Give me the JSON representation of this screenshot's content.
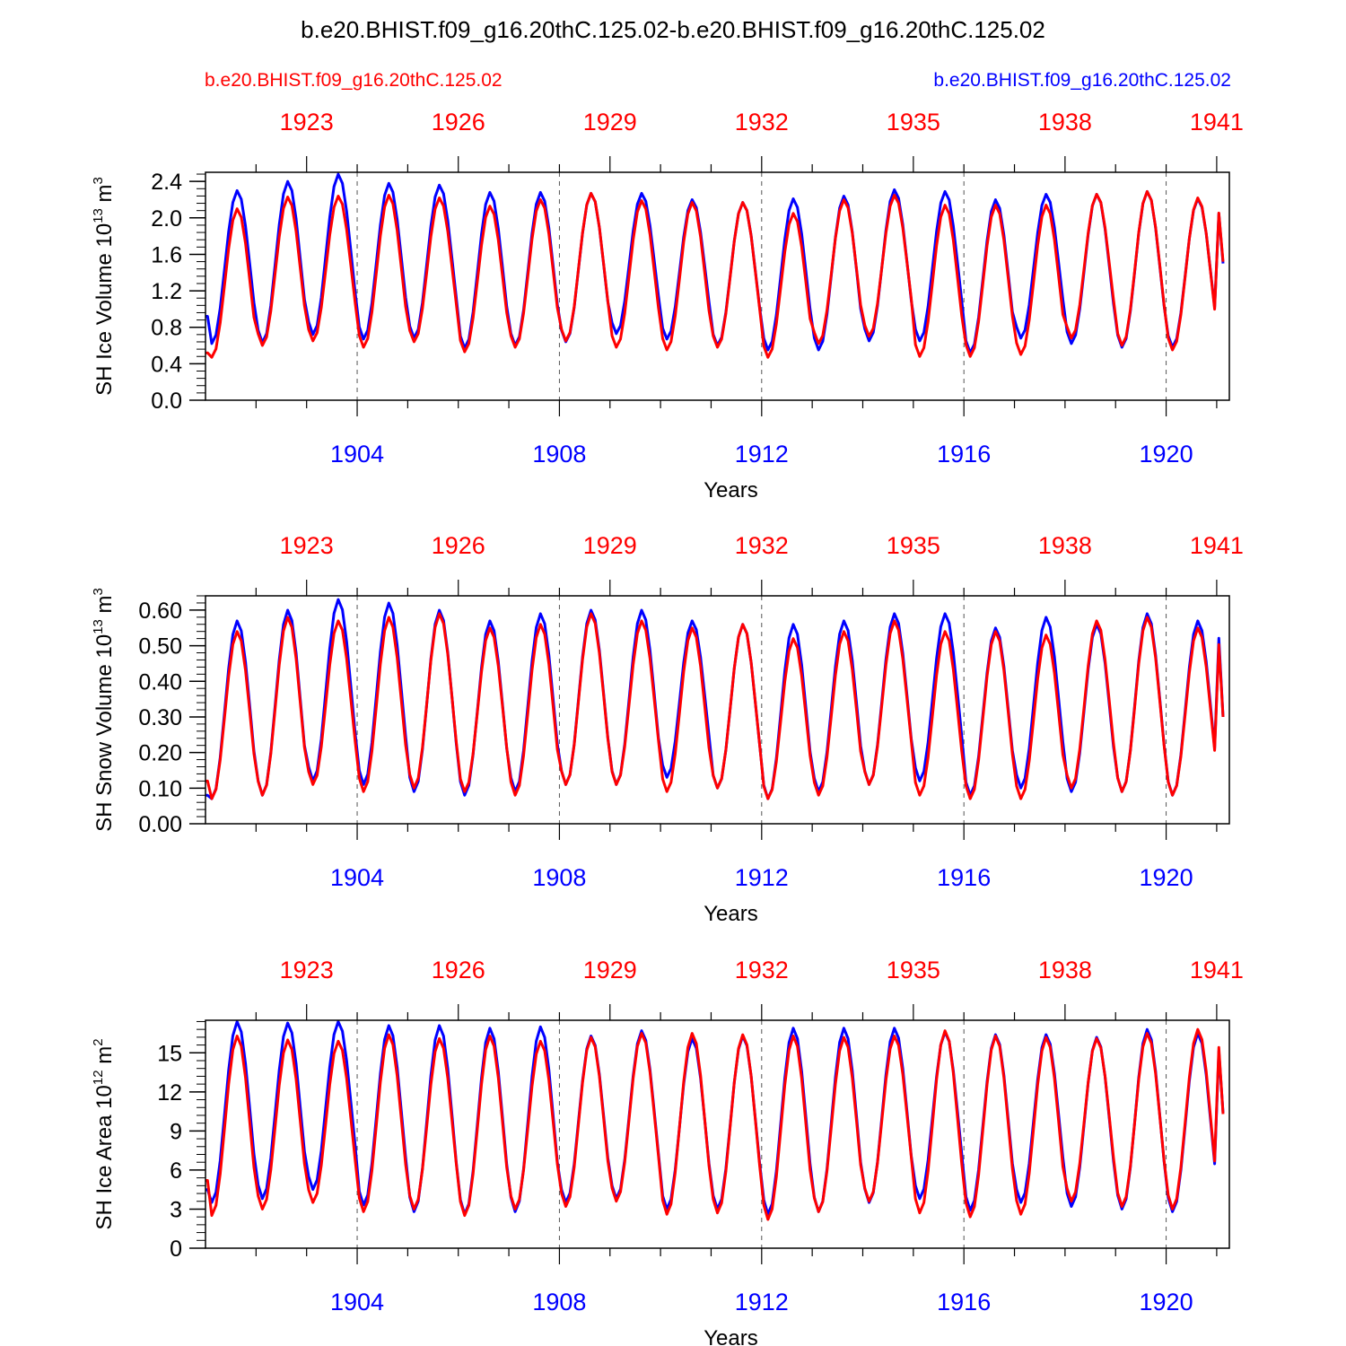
{
  "title": "b.e20.BHIST.f09_g16.20thC.125.02-b.e20.BHIST.f09_g16.20thC.125.02",
  "case_left": "b.e20.BHIST.f09_g16.20thC.125.02",
  "case_right": "b.e20.BHIST.f09_g16.20thC.125.02",
  "colors": {
    "case1": "#ff0000",
    "case2": "#0000ff",
    "axis": "#000000",
    "guide": "#555555"
  },
  "chart_data": [
    {
      "type": "line",
      "ylabel": "SH Ice Volume 10^13 m^3",
      "ylabel_parts": [
        "SH Ice Volume 10",
        "13",
        " m",
        "3"
      ],
      "xlabel": "Years",
      "ylim": [
        0,
        2.5
      ],
      "yticks": [
        0.0,
        0.4,
        0.8,
        1.2,
        1.6,
        2.0,
        2.4
      ],
      "ytick_labels": [
        "0.0",
        "0.4",
        "0.8",
        "1.2",
        "1.6",
        "2.0",
        "2.4"
      ],
      "xlim": [
        1901,
        1921.25
      ],
      "bottom_ticks": [
        1904,
        1908,
        1912,
        1916,
        1920
      ],
      "top_tick_labels": [
        "1923",
        "1926",
        "1929",
        "1932",
        "1935",
        "1938",
        "1941"
      ],
      "series": [
        {
          "name": "b.e20.BHIST.f09_g16.20thC.125.02",
          "color": "#0000ff",
          "min": [
            0.62,
            0.63,
            0.72,
            0.67,
            0.68,
            0.57,
            0.6,
            0.64,
            0.73,
            0.67,
            0.6,
            0.55,
            0.55,
            0.65,
            0.65,
            0.52,
            0.68,
            0.62,
            0.58,
            0.58
          ],
          "max": [
            2.3,
            2.4,
            2.48,
            2.38,
            2.36,
            2.28,
            2.28,
            2.27,
            2.27,
            2.2,
            2.17,
            2.21,
            2.24,
            2.31,
            2.29,
            2.2,
            2.26,
            2.26,
            2.29,
            2.21
          ],
          "start": 0.92,
          "end": 1.5
        },
        {
          "name": "b.e20.BHIST.f09_g16.20thC.125.02",
          "color": "#ff0000",
          "min": [
            0.47,
            0.6,
            0.65,
            0.58,
            0.64,
            0.53,
            0.58,
            0.65,
            0.58,
            0.55,
            0.58,
            0.47,
            0.62,
            0.7,
            0.48,
            0.48,
            0.5,
            0.68,
            0.6,
            0.55
          ],
          "max": [
            2.1,
            2.23,
            2.24,
            2.25,
            2.22,
            2.13,
            2.2,
            2.27,
            2.19,
            2.17,
            2.17,
            2.05,
            2.2,
            2.25,
            2.14,
            2.14,
            2.14,
            2.26,
            2.29,
            2.22
          ],
          "start": 0.52,
          "end": 1.52
        }
      ]
    },
    {
      "type": "line",
      "ylabel": "SH Snow Volume 10^13 m^3",
      "ylabel_parts": [
        "SH Snow Volume 10",
        "13",
        " m",
        "3"
      ],
      "xlabel": "Years",
      "ylim": [
        0,
        0.64
      ],
      "yticks": [
        0.0,
        0.1,
        0.2,
        0.3,
        0.4,
        0.5,
        0.6
      ],
      "ytick_labels": [
        "0.00",
        "0.10",
        "0.20",
        "0.30",
        "0.40",
        "0.50",
        "0.60"
      ],
      "xlim": [
        1901,
        1921.25
      ],
      "bottom_ticks": [
        1904,
        1908,
        1912,
        1916,
        1920
      ],
      "top_tick_labels": [
        "1923",
        "1926",
        "1929",
        "1932",
        "1935",
        "1938",
        "1941"
      ],
      "series": [
        {
          "name": "b.e20.BHIST.f09_g16.20thC.125.02",
          "color": "#0000ff",
          "min": [
            0.07,
            0.08,
            0.12,
            0.11,
            0.09,
            0.08,
            0.09,
            0.11,
            0.11,
            0.13,
            0.1,
            0.07,
            0.09,
            0.11,
            0.12,
            0.08,
            0.1,
            0.09,
            0.09,
            0.08
          ],
          "max": [
            0.57,
            0.6,
            0.63,
            0.62,
            0.6,
            0.57,
            0.59,
            0.6,
            0.6,
            0.57,
            0.56,
            0.56,
            0.57,
            0.59,
            0.59,
            0.55,
            0.58,
            0.56,
            0.59,
            0.57
          ],
          "start": 0.08,
          "end": 0.3
        },
        {
          "name": "b.e20.BHIST.f09_g16.20thC.125.02",
          "color": "#ff0000",
          "min": [
            0.07,
            0.08,
            0.11,
            0.09,
            0.1,
            0.09,
            0.08,
            0.11,
            0.11,
            0.09,
            0.1,
            0.07,
            0.08,
            0.11,
            0.08,
            0.07,
            0.07,
            0.1,
            0.09,
            0.08
          ],
          "max": [
            0.54,
            0.58,
            0.57,
            0.58,
            0.59,
            0.55,
            0.56,
            0.59,
            0.57,
            0.55,
            0.56,
            0.52,
            0.54,
            0.57,
            0.54,
            0.54,
            0.53,
            0.57,
            0.58,
            0.55
          ],
          "start": 0.12,
          "end": 0.3
        }
      ]
    },
    {
      "type": "line",
      "ylabel": "SH Ice Area 10^12 m^2",
      "ylabel_parts": [
        "SH Ice Area 10",
        "12",
        " m",
        "2"
      ],
      "xlabel": "Years",
      "ylim": [
        0,
        17.5
      ],
      "yticks": [
        0,
        3,
        6,
        9,
        12,
        15
      ],
      "ytick_labels": [
        "0",
        "3",
        "6",
        "9",
        "12",
        "15"
      ],
      "xlim": [
        1901,
        1921.25
      ],
      "bottom_ticks": [
        1904,
        1908,
        1912,
        1916,
        1920
      ],
      "top_tick_labels": [
        "1923",
        "1926",
        "1929",
        "1932",
        "1935",
        "1938",
        "1941"
      ],
      "series": [
        {
          "name": "b.e20.BHIST.f09_g16.20thC.125.02",
          "color": "#0000ff",
          "min": [
            3.5,
            3.8,
            4.5,
            3.3,
            2.8,
            2.6,
            2.8,
            3.5,
            3.8,
            3.0,
            3.0,
            2.6,
            2.8,
            3.5,
            3.8,
            2.9,
            3.5,
            3.2,
            3.0,
            2.8
          ],
          "max": [
            17.4,
            17.3,
            17.4,
            17.1,
            17.1,
            16.9,
            17.0,
            16.3,
            16.7,
            16.1,
            16.3,
            16.9,
            16.9,
            16.9,
            16.6,
            16.4,
            16.4,
            16.2,
            16.8,
            16.5
          ],
          "start": 4.5,
          "end": 10.4
        },
        {
          "name": "b.e20.BHIST.f09_g16.20thC.125.02",
          "color": "#ff0000",
          "min": [
            2.5,
            3.0,
            3.5,
            2.8,
            3.0,
            2.5,
            3.0,
            3.2,
            3.6,
            2.6,
            2.7,
            2.2,
            2.8,
            3.6,
            2.7,
            2.4,
            2.6,
            3.6,
            3.2,
            3.0
          ],
          "max": [
            16.3,
            16.0,
            15.9,
            16.4,
            16.1,
            16.3,
            15.9,
            16.2,
            16.5,
            16.5,
            16.4,
            16.3,
            16.2,
            16.3,
            16.7,
            16.3,
            16.2,
            16.1,
            16.5,
            16.8
          ],
          "start": 5.2,
          "end": 10.3
        }
      ]
    }
  ]
}
